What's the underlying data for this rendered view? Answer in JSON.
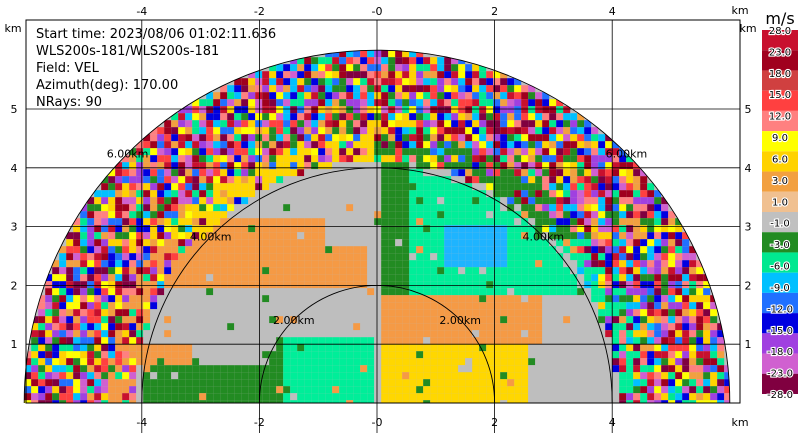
{
  "info": {
    "start_time": "Start time: 2023/08/06 01:02:11.636",
    "instrument": "WLS200s-181/WLS200s-181",
    "field": "Field: VEL",
    "azimuth": "Azimuth(deg): 170.00",
    "nrays": "NRays: 90"
  },
  "axes": {
    "x_unit": "km",
    "y_unit": "km",
    "x_ticks": [
      "-4",
      "-2",
      "-0",
      "2",
      "4"
    ],
    "y_ticks": [
      "1",
      "2",
      "3",
      "4",
      "5"
    ],
    "x_tick_values": [
      -4,
      -2,
      0,
      2,
      4
    ],
    "y_tick_values": [
      1,
      2,
      3,
      4,
      5
    ],
    "x_range": [
      -6.0,
      6.0
    ],
    "y_range": [
      0,
      6.0
    ]
  },
  "range_rings": [
    {
      "value": 2,
      "label": "2.00km"
    },
    {
      "value": 4,
      "label": "4.00km"
    },
    {
      "value": 6,
      "label": "6.00km"
    }
  ],
  "colorbar": {
    "unit": "m/s",
    "labels": [
      "28.0",
      "23.0",
      "18.0",
      "15.0",
      "12.0",
      "9.0",
      "6.0",
      "3.0",
      "1.0",
      "-1.0",
      "-3.0",
      "-6.0",
      "-9.0",
      "-12.0",
      "-15.0",
      "-18.0",
      "-23.0",
      "-28.0"
    ],
    "colors": [
      "#c8102e",
      "#a0001e",
      "#d04040",
      "#ff4040",
      "#ff8080",
      "#ffff00",
      "#ffd200",
      "#f2a040",
      "#f0c090",
      "#c0c0c0",
      "#228b22",
      "#00e890",
      "#00c0ff",
      "#2070ff",
      "#0000e0",
      "#a040e0",
      "#d060d0",
      "#800040"
    ]
  },
  "legend_colors": {
    "gray": "#bebebe",
    "orange": "#f59a45",
    "yellow": "#ffd700",
    "green": "#228b22",
    "seafoam": "#00ee99",
    "sky": "#1eb4ff"
  }
}
